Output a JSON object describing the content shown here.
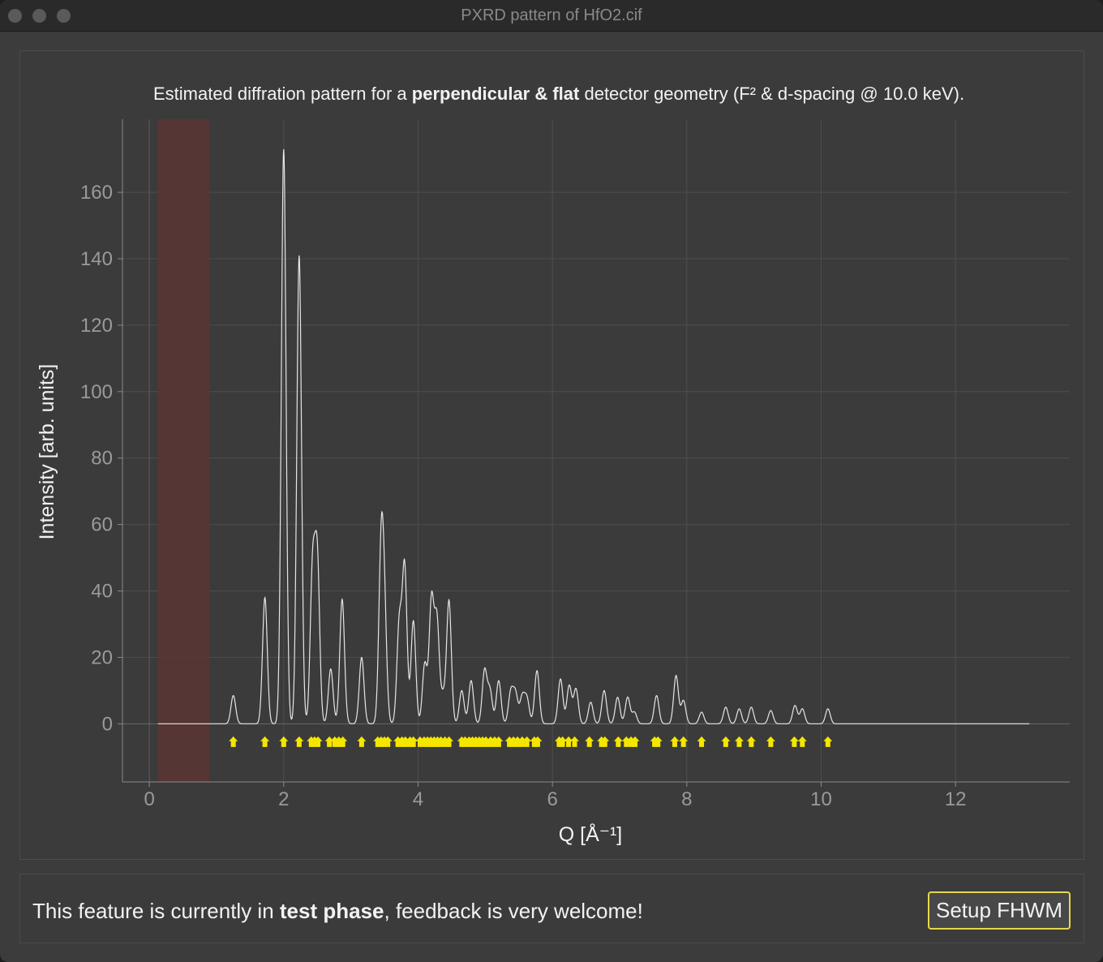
{
  "window": {
    "title": "PXRD pattern of HfO2.cif"
  },
  "caption": {
    "part1": "Estimated diffration pattern for a ",
    "bold": "perpendicular & flat",
    "part2": " detector geometry (F² & d-spacing @ 10.0 keV)."
  },
  "footer": {
    "text1": "This feature is currently in ",
    "bold": "test phase",
    "text2": ", feedback is very welcome!",
    "button_label": "Setup FHWM"
  },
  "colors": {
    "background": "#3b3b3b",
    "curve": "#e6e6e6",
    "marker": "#f5e600",
    "excluded_band": "#5a3535",
    "grid": "#4e4e4e"
  },
  "chart_data": {
    "type": "line",
    "xlabel": "Q [Å⁻¹]",
    "ylabel": "Intensity [arb. units]",
    "xlim": [
      -0.4,
      13.7
    ],
    "ylim": [
      -17.5,
      182
    ],
    "xticks": [
      0,
      2,
      4,
      6,
      8,
      10,
      12
    ],
    "yticks": [
      0,
      20,
      40,
      60,
      80,
      100,
      120,
      140,
      160
    ],
    "grid": true,
    "excluded_region": [
      0.13,
      0.9
    ],
    "curve_range": [
      0.13,
      13.1
    ],
    "peak_width": 0.035,
    "peaks": [
      {
        "q": 1.25,
        "i": 8.5
      },
      {
        "q": 1.72,
        "i": 38
      },
      {
        "q": 2.0,
        "i": 173
      },
      {
        "q": 2.23,
        "i": 141
      },
      {
        "q": 2.43,
        "i": 46
      },
      {
        "q": 2.5,
        "i": 49
      },
      {
        "q": 2.7,
        "i": 16.5
      },
      {
        "q": 2.87,
        "i": 37.5
      },
      {
        "q": 3.16,
        "i": 20
      },
      {
        "q": 3.45,
        "i": 50
      },
      {
        "q": 3.5,
        "i": 30
      },
      {
        "q": 3.72,
        "i": 30
      },
      {
        "q": 3.8,
        "i": 47
      },
      {
        "q": 3.93,
        "i": 31
      },
      {
        "q": 4.1,
        "i": 18
      },
      {
        "q": 4.2,
        "i": 37
      },
      {
        "q": 4.28,
        "i": 31
      },
      {
        "q": 4.37,
        "i": 8
      },
      {
        "q": 4.46,
        "i": 37
      },
      {
        "q": 4.65,
        "i": 10
      },
      {
        "q": 4.79,
        "i": 13
      },
      {
        "q": 4.99,
        "i": 16
      },
      {
        "q": 5.07,
        "i": 10
      },
      {
        "q": 5.2,
        "i": 13
      },
      {
        "q": 5.38,
        "i": 9.5
      },
      {
        "q": 5.45,
        "i": 9
      },
      {
        "q": 5.55,
        "i": 8
      },
      {
        "q": 5.62,
        "i": 7.5
      },
      {
        "q": 5.77,
        "i": 16
      },
      {
        "q": 6.12,
        "i": 13.5
      },
      {
        "q": 6.25,
        "i": 11.5
      },
      {
        "q": 6.35,
        "i": 10.5
      },
      {
        "q": 6.57,
        "i": 6.5
      },
      {
        "q": 6.77,
        "i": 10
      },
      {
        "q": 6.97,
        "i": 8
      },
      {
        "q": 7.12,
        "i": 8
      },
      {
        "q": 7.22,
        "i": 3.5
      },
      {
        "q": 7.55,
        "i": 8.5
      },
      {
        "q": 7.84,
        "i": 14.5
      },
      {
        "q": 7.95,
        "i": 7
      },
      {
        "q": 8.22,
        "i": 3.5
      },
      {
        "q": 8.58,
        "i": 5
      },
      {
        "q": 8.78,
        "i": 4.5
      },
      {
        "q": 8.96,
        "i": 5
      },
      {
        "q": 9.25,
        "i": 4
      },
      {
        "q": 9.61,
        "i": 5.5
      },
      {
        "q": 9.72,
        "i": 4.5
      },
      {
        "q": 10.1,
        "i": 4.5
      }
    ],
    "reflections": [
      1.25,
      1.72,
      2.0,
      2.23,
      2.41,
      2.46,
      2.51,
      2.68,
      2.76,
      2.82,
      2.88,
      3.16,
      3.4,
      3.45,
      3.5,
      3.55,
      3.7,
      3.76,
      3.81,
      3.88,
      3.93,
      4.03,
      4.09,
      4.14,
      4.19,
      4.24,
      4.29,
      4.34,
      4.4,
      4.46,
      4.65,
      4.7,
      4.76,
      4.81,
      4.86,
      4.91,
      4.96,
      5.01,
      5.08,
      5.14,
      5.2,
      5.36,
      5.42,
      5.48,
      5.55,
      5.62,
      5.73,
      5.78,
      6.1,
      6.15,
      6.24,
      6.33,
      6.55,
      6.73,
      6.78,
      6.98,
      7.1,
      7.17,
      7.23,
      7.52,
      7.57,
      7.82,
      7.95,
      8.22,
      8.58,
      8.78,
      8.96,
      9.25,
      9.6,
      9.72,
      10.1
    ]
  }
}
